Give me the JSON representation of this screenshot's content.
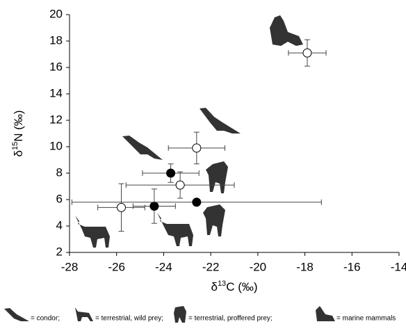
{
  "chart_data": {
    "type": "scatter",
    "x_label": {
      "prefix": "δ",
      "sup": "13",
      "text": "C (‰)"
    },
    "y_label": {
      "prefix": "δ",
      "sup": "15",
      "text": "N (‰)"
    },
    "xlim": [
      -28,
      -14
    ],
    "xticks": [
      -28,
      -26,
      -24,
      -22,
      -20,
      -18,
      -16,
      -14
    ],
    "ylim": [
      2,
      20
    ],
    "yticks": [
      2,
      4,
      6,
      8,
      10,
      12,
      14,
      16,
      18,
      20
    ],
    "series": [
      {
        "color": "#ffffff",
        "x": [
          -17.9,
          -22.6,
          -23.3,
          -25.8
        ],
        "values": [
          17.1,
          9.9,
          7.1,
          5.4
        ],
        "xerr": [
          0.8,
          1.2,
          2.3,
          1.0
        ],
        "yerr": [
          1.0,
          1.2,
          1.0,
          1.8
        ]
      },
      {
        "color": "#000000",
        "x": [
          -23.7,
          -24.4,
          -22.6
        ],
        "values": [
          8.0,
          5.5,
          5.8
        ],
        "xerr": [
          1.2,
          0.9,
          5.3
        ],
        "yerr": [
          0.7,
          1.3,
          0
        ]
      }
    ],
    "legend_items": [
      "= condor;",
      "= terrestrial, wild prey;",
      "= terrestrial, proffered prey;",
      "= marine mammals"
    ]
  }
}
